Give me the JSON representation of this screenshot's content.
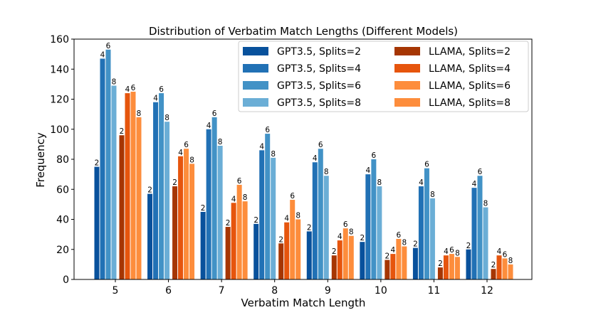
{
  "chart_data": {
    "type": "bar",
    "title": "Distribution of Verbatim Match Lengths (Different Models)",
    "xlabel": "Verbatim Match Length",
    "ylabel": "Frequency",
    "categories": [
      "5",
      "6",
      "7",
      "8",
      "9",
      "10",
      "11",
      "12"
    ],
    "ylim": [
      0,
      160
    ],
    "yticks": [
      0,
      20,
      40,
      60,
      80,
      100,
      120,
      140,
      160
    ],
    "grid": false,
    "legend_position": "top-right",
    "series": [
      {
        "name": "GPT3.5, Splits=2",
        "bar_label": "2",
        "color": "#08519c",
        "values": [
          75,
          57,
          45,
          37,
          32,
          25,
          21,
          20
        ]
      },
      {
        "name": "GPT3.5, Splits=4",
        "bar_label": "4",
        "color": "#2171b5",
        "values": [
          147,
          118,
          100,
          86,
          78,
          70,
          62,
          61
        ]
      },
      {
        "name": "GPT3.5, Splits=6",
        "bar_label": "6",
        "color": "#4292c6",
        "values": [
          153,
          124,
          108,
          97,
          87,
          80,
          74,
          69
        ]
      },
      {
        "name": "GPT3.5, Splits=8",
        "bar_label": "8",
        "color": "#6baed6",
        "values": [
          129,
          105,
          89,
          81,
          69,
          62,
          54,
          48
        ]
      },
      {
        "name": "LLAMA, Splits=2",
        "bar_label": "2",
        "color": "#a63603",
        "values": [
          96,
          62,
          35,
          24,
          16,
          13,
          8,
          7
        ]
      },
      {
        "name": "LLAMA, Splits=4",
        "bar_label": "4",
        "color": "#e6550d",
        "values": [
          124,
          82,
          51,
          38,
          26,
          17,
          16,
          16
        ]
      },
      {
        "name": "LLAMA, Splits=6",
        "bar_label": "6",
        "color": "#fd8d3c",
        "values": [
          125,
          87,
          63,
          53,
          34,
          27,
          17,
          14
        ]
      },
      {
        "name": "LLAMA, Splits=8",
        "bar_label": "8",
        "color": "#fd8d3c",
        "values": [
          108,
          77,
          52,
          40,
          29,
          22,
          15,
          10
        ]
      }
    ]
  }
}
